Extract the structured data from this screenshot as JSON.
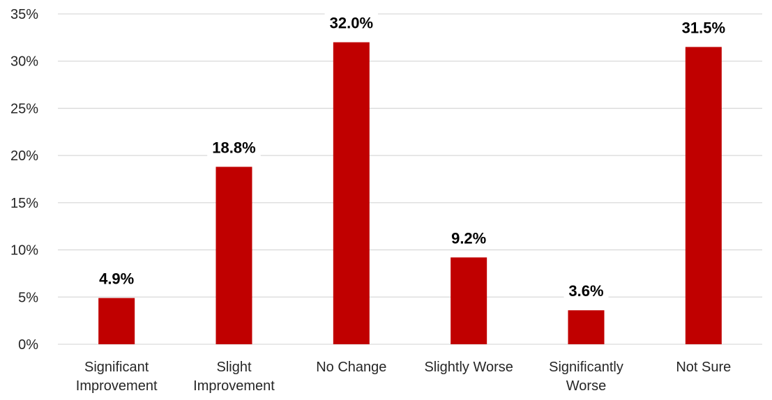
{
  "chart_data": {
    "type": "bar",
    "categories": [
      [
        "Significant",
        "Improvement"
      ],
      [
        "Slight",
        "Improvement"
      ],
      [
        "No Change"
      ],
      [
        "Slightly Worse"
      ],
      [
        "Significantly",
        "Worse"
      ],
      [
        "Not Sure"
      ]
    ],
    "values": [
      4.9,
      18.8,
      32.0,
      9.2,
      3.6,
      31.5
    ],
    "data_labels": [
      "4.9%",
      "18.8%",
      "32.0%",
      "9.2%",
      "3.6%",
      "31.5%"
    ],
    "ylim": [
      0,
      35
    ],
    "yticks": [
      0,
      5,
      10,
      15,
      20,
      25,
      30,
      35
    ],
    "ytick_labels": [
      "0%",
      "5%",
      "10%",
      "15%",
      "20%",
      "25%",
      "30%",
      "35%"
    ],
    "grid": true,
    "legend": "none",
    "colors": {
      "bar": "#c00000"
    }
  }
}
